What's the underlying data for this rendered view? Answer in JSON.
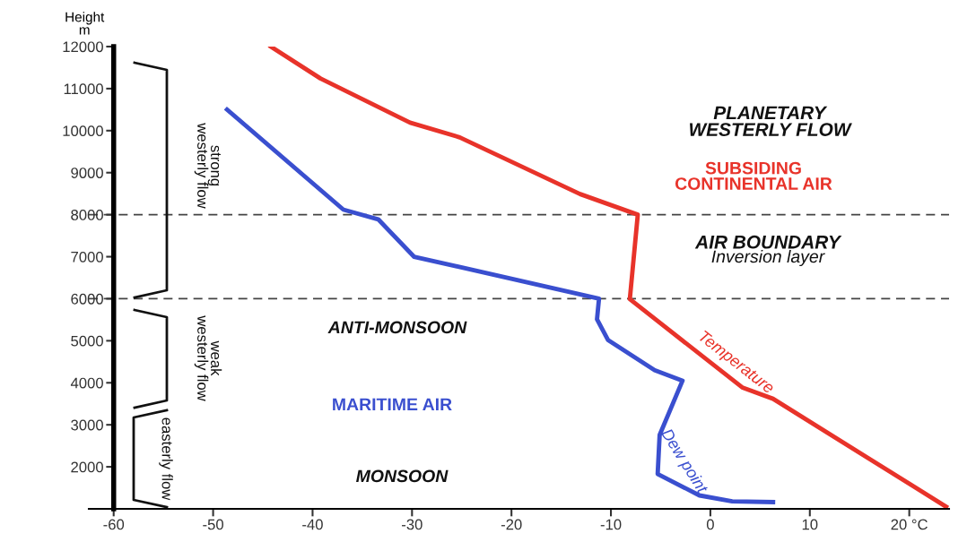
{
  "chart_data": {
    "type": "line",
    "ylabel": "Height\nm",
    "xlim": [
      -62.5,
      24
    ],
    "xticks": [
      -60,
      -50,
      -40,
      -30,
      -20,
      -10,
      0,
      10,
      {
        "value": 20,
        "label": "20 °C"
      }
    ],
    "ylim": [
      1000,
      12000
    ],
    "yticks": [
      2000,
      3000,
      4000,
      5000,
      6000,
      7000,
      8000,
      9000,
      10000,
      11000,
      12000
    ],
    "grid": false,
    "legend": false,
    "marker": "none",
    "line_style": "solid",
    "series": [
      {
        "name": "Temperature",
        "color": "#e8332a",
        "x": [
          -44.2,
          -39.2,
          -30.2,
          -25.2,
          -13.1,
          -7.3,
          -8.1,
          3.2,
          6.3,
          23.7
        ],
        "values": [
          12000,
          11240,
          10190,
          9840,
          8490,
          8000,
          5990,
          3890,
          3620,
          1050
        ]
      },
      {
        "name": "Dew point",
        "color": "#3a4fcf",
        "x": [
          -48.6,
          -36.9,
          -33.4,
          -29.8,
          -11.2,
          -11.4,
          -10.3,
          -5.6,
          -2.8,
          -5.1,
          -5.3,
          -1.1,
          2.2,
          6.3
        ],
        "values": [
          10500,
          8120,
          7890,
          7000,
          6000,
          5510,
          5020,
          4300,
          4050,
          2760,
          1830,
          1320,
          1180,
          1160
        ]
      }
    ],
    "ref_lines": [
      {
        "axis": "y",
        "value": 8000,
        "color": "#444444",
        "line_style": "dashed"
      },
      {
        "axis": "y",
        "value": 6000,
        "color": "#444444",
        "line_style": "dashed"
      }
    ],
    "annotations": [
      "PLANETARY\nWESTERLY FLOW",
      "SUBSIDING\nCONTINENTAL AIR",
      "AIR BOUNDARY",
      "Inversion layer",
      "ANTI-MONSOON",
      "MARITIME AIR",
      "MONSOON",
      "strong\nwesterly flow",
      "weak\nwesterly flow",
      "easterly flow"
    ]
  }
}
